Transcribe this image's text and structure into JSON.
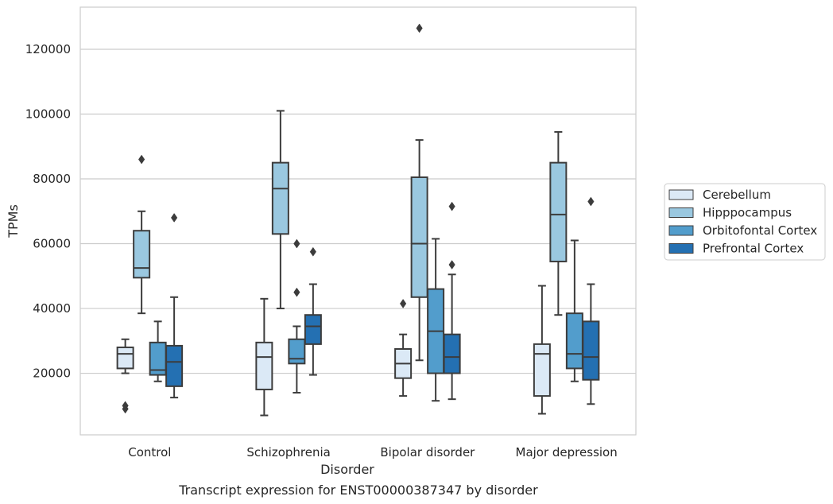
{
  "chart_data": {
    "type": "box",
    "title": "",
    "caption": "Transcript expression for ENST00000387347 by disorder",
    "xlabel": "Disorder",
    "ylabel": "TPMs",
    "ylim": [
      1000,
      133000
    ],
    "yticks": [
      20000,
      40000,
      60000,
      80000,
      100000,
      120000
    ],
    "grid": "horizontal",
    "legend_position": "right",
    "categories": [
      "Control",
      "Schizophrenia",
      "Bipolar disorder",
      "Major depression"
    ],
    "series": [
      {
        "name": "Cerebellum",
        "color": "#dbe9f6",
        "boxes": [
          {
            "whisker_low": 20000,
            "q1": 21500,
            "median": 26000,
            "q3": 28000,
            "whisker_high": 30500,
            "outliers": [
              9000,
              10000
            ]
          },
          {
            "whisker_low": 7000,
            "q1": 15000,
            "median": 25000,
            "q3": 29500,
            "whisker_high": 43000,
            "outliers": []
          },
          {
            "whisker_low": 13000,
            "q1": 18500,
            "median": 23000,
            "q3": 27500,
            "whisker_high": 32000,
            "outliers": [
              41500
            ]
          },
          {
            "whisker_low": 7500,
            "q1": 13000,
            "median": 26000,
            "q3": 29000,
            "whisker_high": 47000,
            "outliers": []
          }
        ]
      },
      {
        "name": "Hipppocampus",
        "color": "#9ac8e0",
        "boxes": [
          {
            "whisker_low": 38500,
            "q1": 49500,
            "median": 52500,
            "q3": 64000,
            "whisker_high": 70000,
            "outliers": [
              86000
            ]
          },
          {
            "whisker_low": 40000,
            "q1": 63000,
            "median": 77000,
            "q3": 85000,
            "whisker_high": 101000,
            "outliers": []
          },
          {
            "whisker_low": 24000,
            "q1": 43500,
            "median": 60000,
            "q3": 80500,
            "whisker_high": 92000,
            "outliers": [
              126500
            ]
          },
          {
            "whisker_low": 38000,
            "q1": 54500,
            "median": 69000,
            "q3": 85000,
            "whisker_high": 94500,
            "outliers": []
          }
        ]
      },
      {
        "name": "Orbitofontal Cortex",
        "color": "#529dcc",
        "boxes": [
          {
            "whisker_low": 17500,
            "q1": 19500,
            "median": 21000,
            "q3": 29500,
            "whisker_high": 36000,
            "outliers": []
          },
          {
            "whisker_low": 14000,
            "q1": 23000,
            "median": 24500,
            "q3": 30500,
            "whisker_high": 34500,
            "outliers": [
              45000,
              60000
            ]
          },
          {
            "whisker_low": 11500,
            "q1": 20000,
            "median": 33000,
            "q3": 46000,
            "whisker_high": 61500,
            "outliers": []
          },
          {
            "whisker_low": 17500,
            "q1": 21500,
            "median": 26000,
            "q3": 38500,
            "whisker_high": 61000,
            "outliers": []
          }
        ]
      },
      {
        "name": "Prefrontal Cortex",
        "color": "#2470b2",
        "boxes": [
          {
            "whisker_low": 12500,
            "q1": 16000,
            "median": 23500,
            "q3": 28500,
            "whisker_high": 43500,
            "outliers": [
              68000
            ]
          },
          {
            "whisker_low": 19500,
            "q1": 29000,
            "median": 34500,
            "q3": 38000,
            "whisker_high": 47500,
            "outliers": [
              57500
            ]
          },
          {
            "whisker_low": 12000,
            "q1": 20000,
            "median": 25000,
            "q3": 32000,
            "whisker_high": 50500,
            "outliers": [
              53500,
              71500
            ]
          },
          {
            "whisker_low": 10500,
            "q1": 18000,
            "median": 25000,
            "q3": 36000,
            "whisker_high": 47500,
            "outliers": [
              73000
            ]
          }
        ]
      }
    ]
  }
}
